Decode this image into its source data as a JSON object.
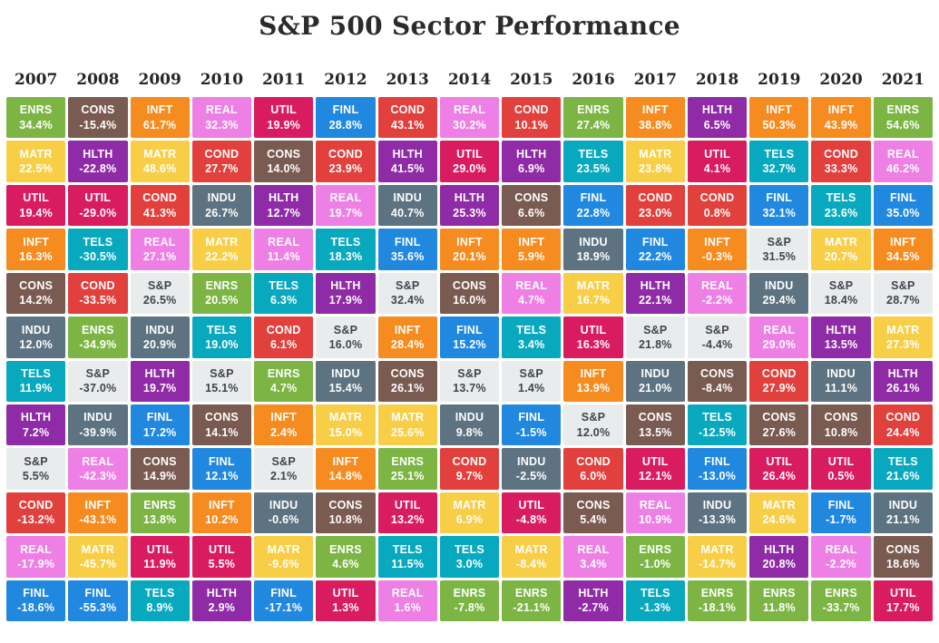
{
  "title": "S&P 500 Sector Performance",
  "chart_data": {
    "type": "heatmap",
    "description": "Ranked annual total returns of S&P 500 sectors, best (top) to worst (bottom) per year",
    "sector_colors": {
      "ENRS": "#7cb544",
      "MATR": "#f8ce46",
      "UTIL": "#d91c5f",
      "INFT": "#f68b1f",
      "CONS": "#7a5b51",
      "INDU": "#5d7382",
      "TELS": "#08a9bf",
      "HLTH": "#8f2ba6",
      "S&P": "#e9eced",
      "COND": "#e2403c",
      "REAL": "#ee7fe4",
      "FINL": "#2188e0"
    },
    "default_text_color": "#ffffff",
    "sp_text_color": "#3d464d",
    "columns": [
      {
        "year": "2007",
        "cells": [
          {
            "sector": "ENRS",
            "value": "34.4%"
          },
          {
            "sector": "MATR",
            "value": "22.5%"
          },
          {
            "sector": "UTIL",
            "value": "19.4%"
          },
          {
            "sector": "INFT",
            "value": "16.3%"
          },
          {
            "sector": "CONS",
            "value": "14.2%"
          },
          {
            "sector": "INDU",
            "value": "12.0%"
          },
          {
            "sector": "TELS",
            "value": "11.9%"
          },
          {
            "sector": "HLTH",
            "value": "7.2%"
          },
          {
            "sector": "S&P",
            "value": "5.5%"
          },
          {
            "sector": "COND",
            "value": "-13.2%"
          },
          {
            "sector": "REAL",
            "value": "-17.9%"
          },
          {
            "sector": "FINL",
            "value": "-18.6%"
          }
        ]
      },
      {
        "year": "2008",
        "cells": [
          {
            "sector": "CONS",
            "value": "-15.4%"
          },
          {
            "sector": "HLTH",
            "value": "-22.8%"
          },
          {
            "sector": "UTIL",
            "value": "-29.0%"
          },
          {
            "sector": "TELS",
            "value": "-30.5%"
          },
          {
            "sector": "COND",
            "value": "-33.5%"
          },
          {
            "sector": "ENRS",
            "value": "-34.9%"
          },
          {
            "sector": "S&P",
            "value": "-37.0%"
          },
          {
            "sector": "INDU",
            "value": "-39.9%"
          },
          {
            "sector": "REAL",
            "value": "-42.3%"
          },
          {
            "sector": "INFT",
            "value": "-43.1%"
          },
          {
            "sector": "MATR",
            "value": "-45.7%"
          },
          {
            "sector": "FINL",
            "value": "-55.3%"
          }
        ]
      },
      {
        "year": "2009",
        "cells": [
          {
            "sector": "INFT",
            "value": "61.7%"
          },
          {
            "sector": "MATR",
            "value": "48.6%"
          },
          {
            "sector": "COND",
            "value": "41.3%"
          },
          {
            "sector": "REAL",
            "value": "27.1%"
          },
          {
            "sector": "S&P",
            "value": "26.5%"
          },
          {
            "sector": "INDU",
            "value": "20.9%"
          },
          {
            "sector": "HLTH",
            "value": "19.7%"
          },
          {
            "sector": "FINL",
            "value": "17.2%"
          },
          {
            "sector": "CONS",
            "value": "14.9%"
          },
          {
            "sector": "ENRS",
            "value": "13.8%"
          },
          {
            "sector": "UTIL",
            "value": "11.9%"
          },
          {
            "sector": "TELS",
            "value": "8.9%"
          }
        ]
      },
      {
        "year": "2010",
        "cells": [
          {
            "sector": "REAL",
            "value": "32.3%"
          },
          {
            "sector": "COND",
            "value": "27.7%"
          },
          {
            "sector": "INDU",
            "value": "26.7%"
          },
          {
            "sector": "MATR",
            "value": "22.2%"
          },
          {
            "sector": "ENRS",
            "value": "20.5%"
          },
          {
            "sector": "TELS",
            "value": "19.0%"
          },
          {
            "sector": "S&P",
            "value": "15.1%"
          },
          {
            "sector": "CONS",
            "value": "14.1%"
          },
          {
            "sector": "FINL",
            "value": "12.1%"
          },
          {
            "sector": "INFT",
            "value": "10.2%"
          },
          {
            "sector": "UTIL",
            "value": "5.5%"
          },
          {
            "sector": "HLTH",
            "value": "2.9%"
          }
        ]
      },
      {
        "year": "2011",
        "cells": [
          {
            "sector": "UTIL",
            "value": "19.9%"
          },
          {
            "sector": "CONS",
            "value": "14.0%"
          },
          {
            "sector": "HLTH",
            "value": "12.7%"
          },
          {
            "sector": "REAL",
            "value": "11.4%"
          },
          {
            "sector": "TELS",
            "value": "6.3%"
          },
          {
            "sector": "COND",
            "value": "6.1%"
          },
          {
            "sector": "ENRS",
            "value": "4.7%"
          },
          {
            "sector": "INFT",
            "value": "2.4%"
          },
          {
            "sector": "S&P",
            "value": "2.1%"
          },
          {
            "sector": "INDU",
            "value": "-0.6%"
          },
          {
            "sector": "MATR",
            "value": "-9.6%"
          },
          {
            "sector": "FINL",
            "value": "-17.1%"
          }
        ]
      },
      {
        "year": "2012",
        "cells": [
          {
            "sector": "FINL",
            "value": "28.8%"
          },
          {
            "sector": "COND",
            "value": "23.9%"
          },
          {
            "sector": "REAL",
            "value": "19.7%"
          },
          {
            "sector": "TELS",
            "value": "18.3%"
          },
          {
            "sector": "HLTH",
            "value": "17.9%"
          },
          {
            "sector": "S&P",
            "value": "16.0%"
          },
          {
            "sector": "INDU",
            "value": "15.4%"
          },
          {
            "sector": "MATR",
            "value": "15.0%"
          },
          {
            "sector": "INFT",
            "value": "14.8%"
          },
          {
            "sector": "CONS",
            "value": "10.8%"
          },
          {
            "sector": "ENRS",
            "value": "4.6%"
          },
          {
            "sector": "UTIL",
            "value": "1.3%"
          }
        ]
      },
      {
        "year": "2013",
        "cells": [
          {
            "sector": "COND",
            "value": "43.1%"
          },
          {
            "sector": "HLTH",
            "value": "41.5%"
          },
          {
            "sector": "INDU",
            "value": "40.7%"
          },
          {
            "sector": "FINL",
            "value": "35.6%"
          },
          {
            "sector": "S&P",
            "value": "32.4%"
          },
          {
            "sector": "INFT",
            "value": "28.4%"
          },
          {
            "sector": "CONS",
            "value": "26.1%"
          },
          {
            "sector": "MATR",
            "value": "25.6%"
          },
          {
            "sector": "ENRS",
            "value": "25.1%"
          },
          {
            "sector": "UTIL",
            "value": "13.2%"
          },
          {
            "sector": "TELS",
            "value": "11.5%"
          },
          {
            "sector": "REAL",
            "value": "1.6%"
          }
        ]
      },
      {
        "year": "2014",
        "cells": [
          {
            "sector": "REAL",
            "value": "30.2%"
          },
          {
            "sector": "UTIL",
            "value": "29.0%"
          },
          {
            "sector": "HLTH",
            "value": "25.3%"
          },
          {
            "sector": "INFT",
            "value": "20.1%"
          },
          {
            "sector": "CONS",
            "value": "16.0%"
          },
          {
            "sector": "FINL",
            "value": "15.2%"
          },
          {
            "sector": "S&P",
            "value": "13.7%"
          },
          {
            "sector": "INDU",
            "value": "9.8%"
          },
          {
            "sector": "COND",
            "value": "9.7%"
          },
          {
            "sector": "MATR",
            "value": "6.9%"
          },
          {
            "sector": "TELS",
            "value": "3.0%"
          },
          {
            "sector": "ENRS",
            "value": "-7.8%"
          }
        ]
      },
      {
        "year": "2015",
        "cells": [
          {
            "sector": "COND",
            "value": "10.1%"
          },
          {
            "sector": "HLTH",
            "value": "6.9%"
          },
          {
            "sector": "CONS",
            "value": "6.6%"
          },
          {
            "sector": "INFT",
            "value": "5.9%"
          },
          {
            "sector": "REAL",
            "value": "4.7%"
          },
          {
            "sector": "TELS",
            "value": "3.4%"
          },
          {
            "sector": "S&P",
            "value": "1.4%"
          },
          {
            "sector": "FINL",
            "value": "-1.5%"
          },
          {
            "sector": "INDU",
            "value": "-2.5%"
          },
          {
            "sector": "UTIL",
            "value": "-4.8%"
          },
          {
            "sector": "MATR",
            "value": "-8.4%"
          },
          {
            "sector": "ENRS",
            "value": "-21.1%"
          }
        ]
      },
      {
        "year": "2016",
        "cells": [
          {
            "sector": "ENRS",
            "value": "27.4%"
          },
          {
            "sector": "TELS",
            "value": "23.5%"
          },
          {
            "sector": "FINL",
            "value": "22.8%"
          },
          {
            "sector": "INDU",
            "value": "18.9%"
          },
          {
            "sector": "MATR",
            "value": "16.7%"
          },
          {
            "sector": "UTIL",
            "value": "16.3%"
          },
          {
            "sector": "INFT",
            "value": "13.9%"
          },
          {
            "sector": "S&P",
            "value": "12.0%"
          },
          {
            "sector": "COND",
            "value": "6.0%"
          },
          {
            "sector": "CONS",
            "value": "5.4%"
          },
          {
            "sector": "REAL",
            "value": "3.4%"
          },
          {
            "sector": "HLTH",
            "value": "-2.7%"
          }
        ]
      },
      {
        "year": "2017",
        "cells": [
          {
            "sector": "INFT",
            "value": "38.8%"
          },
          {
            "sector": "MATR",
            "value": "23.8%"
          },
          {
            "sector": "COND",
            "value": "23.0%"
          },
          {
            "sector": "FINL",
            "value": "22.2%"
          },
          {
            "sector": "HLTH",
            "value": "22.1%"
          },
          {
            "sector": "S&P",
            "value": "21.8%"
          },
          {
            "sector": "INDU",
            "value": "21.0%"
          },
          {
            "sector": "CONS",
            "value": "13.5%"
          },
          {
            "sector": "UTIL",
            "value": "12.1%"
          },
          {
            "sector": "REAL",
            "value": "10.9%"
          },
          {
            "sector": "ENRS",
            "value": "-1.0%"
          },
          {
            "sector": "TELS",
            "value": "-1.3%"
          }
        ]
      },
      {
        "year": "2018",
        "cells": [
          {
            "sector": "HLTH",
            "value": "6.5%"
          },
          {
            "sector": "UTIL",
            "value": "4.1%"
          },
          {
            "sector": "COND",
            "value": "0.8%"
          },
          {
            "sector": "INFT",
            "value": "-0.3%"
          },
          {
            "sector": "REAL",
            "value": "-2.2%"
          },
          {
            "sector": "S&P",
            "value": "-4.4%"
          },
          {
            "sector": "CONS",
            "value": "-8.4%"
          },
          {
            "sector": "TELS",
            "value": "-12.5%"
          },
          {
            "sector": "FINL",
            "value": "-13.0%"
          },
          {
            "sector": "INDU",
            "value": "-13.3%"
          },
          {
            "sector": "MATR",
            "value": "-14.7%"
          },
          {
            "sector": "ENRS",
            "value": "-18.1%"
          }
        ]
      },
      {
        "year": "2019",
        "cells": [
          {
            "sector": "INFT",
            "value": "50.3%"
          },
          {
            "sector": "TELS",
            "value": "32.7%"
          },
          {
            "sector": "FINL",
            "value": "32.1%"
          },
          {
            "sector": "S&P",
            "value": "31.5%"
          },
          {
            "sector": "INDU",
            "value": "29.4%"
          },
          {
            "sector": "REAL",
            "value": "29.0%"
          },
          {
            "sector": "COND",
            "value": "27.9%"
          },
          {
            "sector": "CONS",
            "value": "27.6%"
          },
          {
            "sector": "UTIL",
            "value": "26.4%"
          },
          {
            "sector": "MATR",
            "value": "24.6%"
          },
          {
            "sector": "HLTH",
            "value": "20.8%"
          },
          {
            "sector": "ENRS",
            "value": "11.8%"
          }
        ]
      },
      {
        "year": "2020",
        "cells": [
          {
            "sector": "INFT",
            "value": "43.9%"
          },
          {
            "sector": "COND",
            "value": "33.3%"
          },
          {
            "sector": "TELS",
            "value": "23.6%"
          },
          {
            "sector": "MATR",
            "value": "20.7%"
          },
          {
            "sector": "S&P",
            "value": "18.4%"
          },
          {
            "sector": "HLTH",
            "value": "13.5%"
          },
          {
            "sector": "INDU",
            "value": "11.1%"
          },
          {
            "sector": "CONS",
            "value": "10.8%"
          },
          {
            "sector": "UTIL",
            "value": "0.5%"
          },
          {
            "sector": "FINL",
            "value": "-1.7%"
          },
          {
            "sector": "REAL",
            "value": "-2.2%"
          },
          {
            "sector": "ENRS",
            "value": "-33.7%"
          }
        ]
      },
      {
        "year": "2021",
        "cells": [
          {
            "sector": "ENRS",
            "value": "54.6%"
          },
          {
            "sector": "REAL",
            "value": "46.2%"
          },
          {
            "sector": "FINL",
            "value": "35.0%"
          },
          {
            "sector": "INFT",
            "value": "34.5%"
          },
          {
            "sector": "S&P",
            "value": "28.7%"
          },
          {
            "sector": "MATR",
            "value": "27.3%"
          },
          {
            "sector": "HLTH",
            "value": "26.1%"
          },
          {
            "sector": "COND",
            "value": "24.4%"
          },
          {
            "sector": "TELS",
            "value": "21.6%"
          },
          {
            "sector": "INDU",
            "value": "21.1%"
          },
          {
            "sector": "CONS",
            "value": "18.6%"
          },
          {
            "sector": "UTIL",
            "value": "17.7%"
          }
        ]
      }
    ]
  }
}
